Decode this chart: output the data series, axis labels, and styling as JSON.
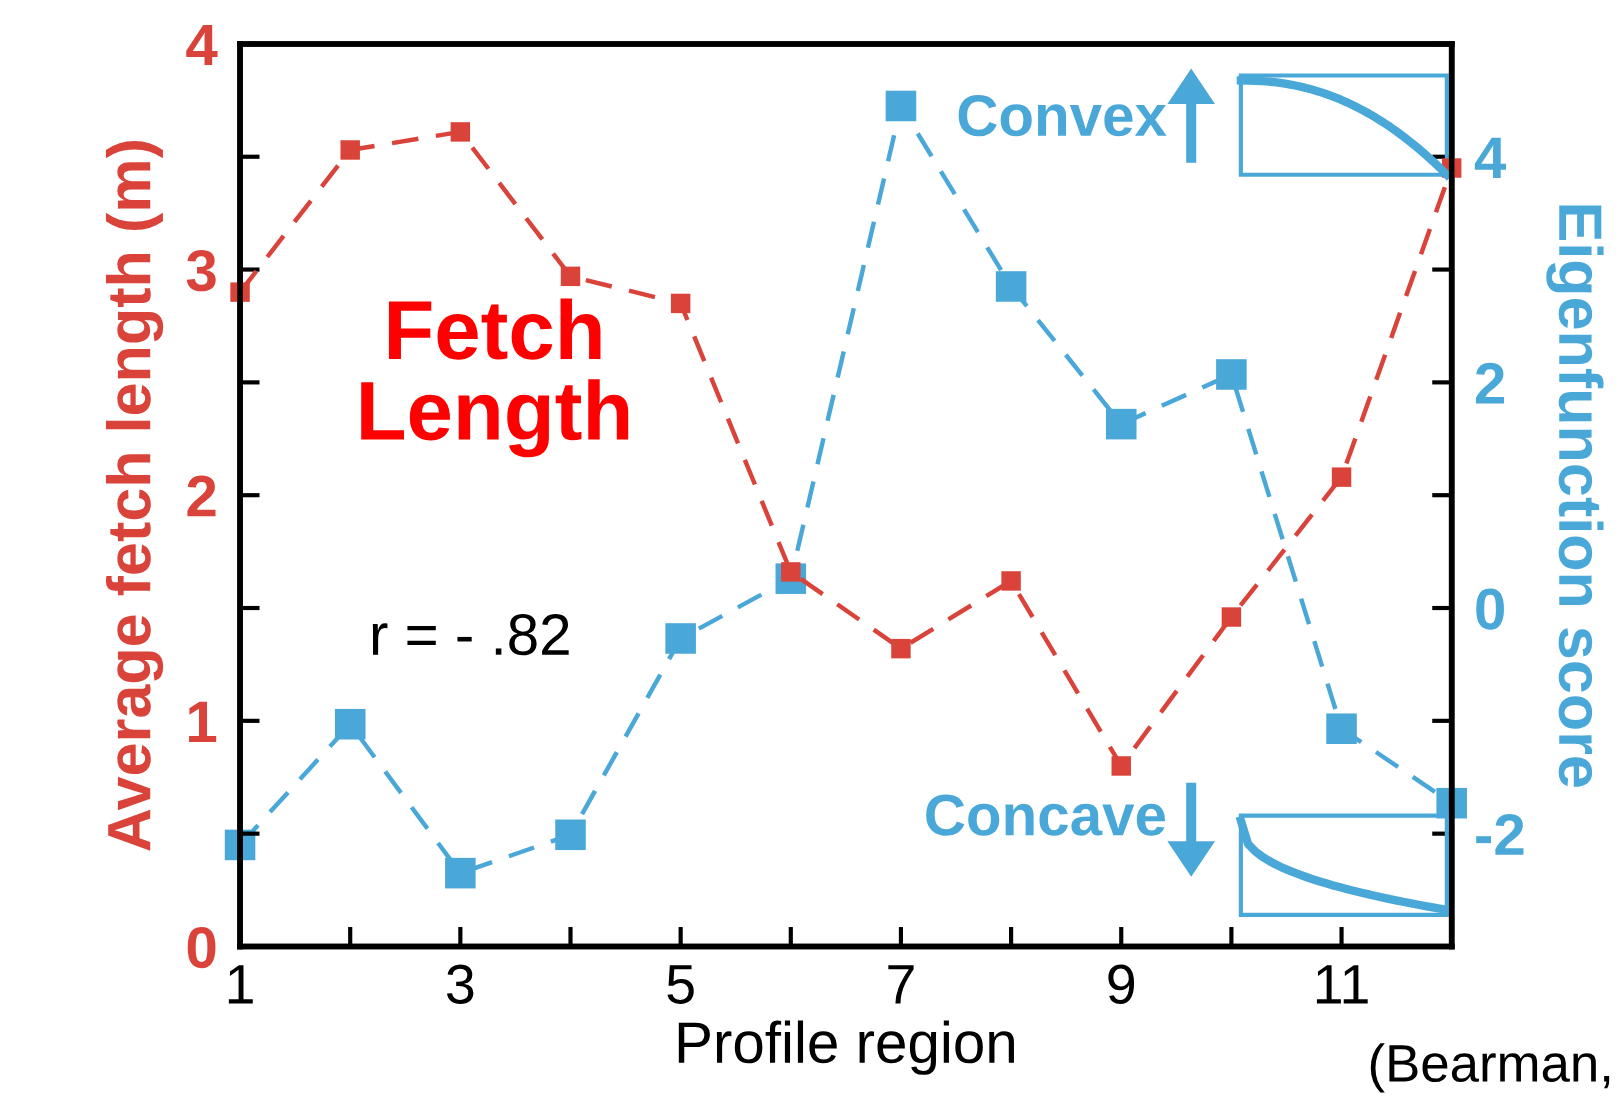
{
  "chart_data": {
    "type": "line",
    "xlabel": "Profile region",
    "ylabel": "Average fetch length (m)",
    "y2label": "Eigenfunction score",
    "x": [
      1,
      2,
      3,
      4,
      5,
      6,
      7,
      8,
      9,
      10,
      11,
      12
    ],
    "xlim": [
      1,
      12
    ],
    "xticks": [
      1,
      {
        "value": 2,
        "label": null
      },
      3,
      {
        "value": 4,
        "label": null
      },
      5,
      {
        "value": 6,
        "label": null
      },
      7,
      {
        "value": 8,
        "label": null
      },
      9,
      {
        "value": 10,
        "label": null
      },
      11,
      {
        "value": 12,
        "label": null
      }
    ],
    "ylim": [
      0,
      4
    ],
    "yticks": [
      0,
      {
        "value": 0.5,
        "label": null
      },
      1,
      {
        "value": 1.5,
        "label": null
      },
      2,
      {
        "value": 2.5,
        "label": null
      },
      3,
      {
        "value": 3.5,
        "label": null
      },
      4
    ],
    "y2lim": [
      -3,
      5
    ],
    "y2ticks": [
      {
        "value": -3,
        "label": null
      },
      -2,
      {
        "value": -1,
        "label": null
      },
      0,
      {
        "value": 1,
        "label": null
      },
      2,
      {
        "value": 3,
        "label": null
      },
      4,
      {
        "value": 5,
        "label": null
      }
    ],
    "series": [
      {
        "color": "#d9433a",
        "values": [
          2.9,
          3.53,
          3.61,
          2.97,
          2.85,
          1.66,
          1.32,
          1.62,
          0.8,
          1.46,
          2.08,
          3.45
        ]
      },
      {
        "color": "#4aa8d8",
        "axis": "y2",
        "values": [
          -2.1,
          -1.03,
          -2.35,
          -2.01,
          -0.27,
          0.26,
          4.45,
          2.85,
          1.63,
          2.07,
          -1.07,
          -1.73
        ]
      }
    ],
    "marker": "square",
    "line_style": "dashed",
    "grid": false,
    "legend": false,
    "annotations": [
      "Fetch\nLength",
      "r = - .82",
      "Convex",
      "Concave",
      "(Bearman,"
    ]
  }
}
